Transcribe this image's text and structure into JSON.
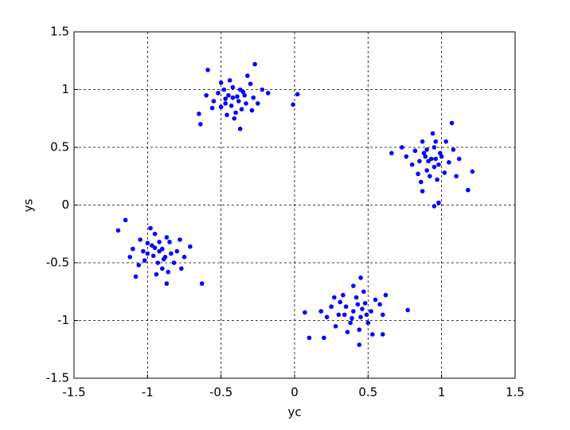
{
  "chart_data": {
    "type": "scatter",
    "xlabel": "yc",
    "ylabel": "ys",
    "color": "#0000ff",
    "grid": true,
    "xlim": [
      -1.5,
      1.5
    ],
    "ylim": [
      -1.5,
      1.5
    ],
    "xticks": [
      -1.5,
      -1,
      -0.5,
      0,
      0.5,
      1,
      1.5
    ],
    "yticks": [
      -1.5,
      -1,
      -0.5,
      0,
      0.5,
      1,
      1.5
    ],
    "x": [
      -0.59,
      -0.27,
      0.02,
      -0.01,
      -0.65,
      -0.64,
      -0.37,
      -0.18,
      -0.45,
      -0.38,
      -0.42,
      -0.33,
      -0.5,
      -0.47,
      -0.35,
      -0.4,
      -0.28,
      -0.52,
      -0.44,
      -0.3,
      -0.55,
      -0.39,
      -0.43,
      -0.36,
      -0.48,
      -0.25,
      -0.6,
      -0.41,
      -0.32,
      -0.5,
      -0.22,
      -0.46,
      -0.37,
      -0.42,
      -0.29,
      -0.56,
      -0.34,
      -0.47,
      0.95,
      0.98,
      1.07,
      1.21,
      1.18,
      0.66,
      0.87,
      0.93,
      0.88,
      0.98,
      0.95,
      0.85,
      1.0,
      0.9,
      0.96,
      0.82,
      1.05,
      0.92,
      0.8,
      1.08,
      0.94,
      0.87,
      1.02,
      0.76,
      0.99,
      0.91,
      1.12,
      0.84,
      0.97,
      0.9,
      1.03,
      0.73,
      0.95,
      1.1,
      0.86,
      0.96,
      0.89,
      -1.15,
      -1.2,
      -0.63,
      -1.08,
      -0.71,
      -0.87,
      -0.92,
      -0.97,
      -0.88,
      -1.0,
      -0.85,
      -0.93,
      -1.05,
      -0.8,
      -0.95,
      -0.9,
      -1.02,
      -0.82,
      -0.98,
      -0.75,
      -1.1,
      -0.87,
      -0.94,
      -0.78,
      -1.06,
      -0.9,
      -0.96,
      -0.84,
      -1.12,
      -0.92,
      -0.86,
      -1.0,
      -0.77,
      -0.95,
      -1.03,
      -0.89,
      0.07,
      0.1,
      0.77,
      0.6,
      0.44,
      0.45,
      0.2,
      0.4,
      0.35,
      0.45,
      0.38,
      0.48,
      0.3,
      0.42,
      0.52,
      0.28,
      0.44,
      0.55,
      0.33,
      0.6,
      0.25,
      0.47,
      0.36,
      0.5,
      0.22,
      0.58,
      0.4,
      0.31,
      0.46,
      0.62,
      0.18,
      0.39,
      0.53,
      0.27,
      0.43,
      0.34,
      0.49
    ],
    "values": [
      1.17,
      1.22,
      0.96,
      0.87,
      0.79,
      0.7,
      0.66,
      0.97,
      0.95,
      0.9,
      1.02,
      0.88,
      0.85,
      0.92,
      0.98,
      0.8,
      0.93,
      0.97,
      1.08,
      1.05,
      0.9,
      0.94,
      0.86,
      0.83,
      1.0,
      0.88,
      0.95,
      0.75,
      1.12,
      1.06,
      1.0,
      0.78,
      1.0,
      0.93,
      0.82,
      0.84,
      0.95,
      0.88,
      -0.01,
      0.02,
      0.71,
      0.29,
      0.13,
      0.45,
      0.12,
      0.4,
      0.45,
      0.35,
      0.5,
      0.38,
      0.42,
      0.3,
      0.55,
      0.47,
      0.37,
      0.25,
      0.35,
      0.48,
      0.62,
      0.55,
      0.28,
      0.42,
      0.45,
      0.38,
      0.4,
      0.27,
      0.22,
      0.48,
      0.55,
      0.5,
      0.33,
      0.25,
      0.2,
      0.4,
      0.42,
      -0.13,
      -0.22,
      -0.68,
      -0.62,
      -0.36,
      -0.68,
      -0.4,
      -0.35,
      -0.45,
      -0.42,
      -0.32,
      -0.5,
      -0.3,
      -0.4,
      -0.25,
      -0.55,
      -0.48,
      -0.5,
      -0.2,
      -0.45,
      -0.38,
      -0.28,
      -0.6,
      -0.3,
      -0.52,
      -0.38,
      -0.44,
      -0.42,
      -0.45,
      -0.32,
      -0.58,
      -0.33,
      -0.55,
      -0.37,
      -0.4,
      -0.47,
      -0.93,
      -1.15,
      -0.91,
      -1.12,
      -1.21,
      -0.63,
      -1.15,
      -0.92,
      -0.88,
      -0.97,
      -1.02,
      -0.85,
      -0.95,
      -0.8,
      -0.92,
      -1.05,
      -1.08,
      -0.82,
      -0.78,
      -0.95,
      -0.88,
      -0.75,
      -1.1,
      -1.02,
      -0.97,
      -0.86,
      -0.7,
      -0.84,
      -0.9,
      -0.78,
      -0.92,
      -0.98,
      -1.12,
      -0.8,
      -0.86,
      -0.95,
      -0.95
    ]
  }
}
